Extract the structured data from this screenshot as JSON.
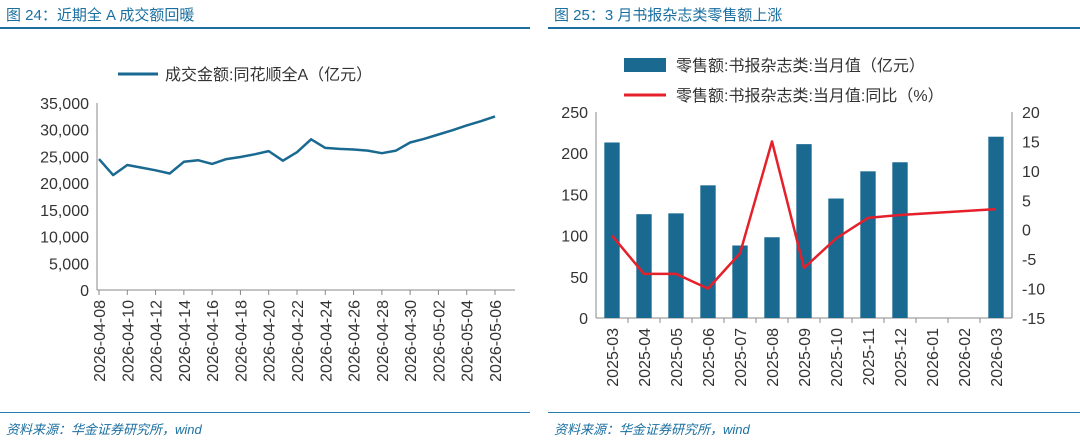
{
  "charts": [
    {
      "title": "图 24：近期全 A 成交额回暖",
      "source": "资料来源：华金证券研究所，wind"
    },
    {
      "title": "图 25：3 月书报杂志类零售额上涨",
      "source": "资料来源：华金证券研究所，wind"
    }
  ],
  "colors": {
    "accent": "#1a6fa0",
    "series_blue": "#1a6991",
    "series_red": "#e5202a"
  },
  "chart_data": [
    {
      "type": "line",
      "title": "",
      "legend_position": "top",
      "x": [
        "2026-04-08",
        "2026-04-09",
        "2026-04-10",
        "2026-04-11",
        "2026-04-12",
        "2026-04-13",
        "2026-04-14",
        "2026-04-15",
        "2026-04-16",
        "2026-04-17",
        "2026-04-18",
        "2026-04-19",
        "2026-04-20",
        "2026-04-21",
        "2026-04-22",
        "2026-04-23",
        "2026-04-24",
        "2026-04-25",
        "2026-04-26",
        "2026-04-27",
        "2026-04-28",
        "2026-04-29",
        "2026-04-30",
        "2026-05-01",
        "2026-05-02",
        "2026-05-03",
        "2026-05-04",
        "2026-05-05",
        "2026-05-06"
      ],
      "x_tick_labels": [
        "2026-04-08",
        "2026-04-10",
        "2026-04-12",
        "2026-04-14",
        "2026-04-16",
        "2026-04-18",
        "2026-04-20",
        "2026-04-22",
        "2026-04-24",
        "2026-04-26",
        "2026-04-28",
        "2026-04-30",
        "2026-05-02",
        "2026-05-04",
        "2026-05-06"
      ],
      "series": [
        {
          "name": "成交金额:同花顺全A（亿元）",
          "values": [
            24500,
            21500,
            23400,
            22900,
            22400,
            21800,
            24000,
            24300,
            23600,
            24500,
            24900,
            25400,
            26000,
            24200,
            25800,
            28200,
            26600,
            26400,
            26300,
            26100,
            25600,
            26100,
            27600,
            28300,
            29100,
            29900,
            30800,
            31600,
            32500
          ]
        }
      ],
      "y_ticks": [
        "0",
        "5,000",
        "10,000",
        "15,000",
        "20,000",
        "25,000",
        "30,000",
        "35,000"
      ],
      "ylim": [
        0,
        35000
      ],
      "grid": false
    },
    {
      "type": "bar",
      "title": "",
      "legend_position": "top",
      "categories": [
        "2025-03",
        "2025-04",
        "2025-05",
        "2025-06",
        "2025-07",
        "2025-08",
        "2025-09",
        "2025-10",
        "2025-11",
        "2025-12",
        "2026-01",
        "2026-02",
        "2026-03"
      ],
      "series": [
        {
          "name": "零售额:书报杂志类:当月值（亿元）",
          "type": "bar",
          "axis": "left",
          "values": [
            213,
            126,
            127,
            161,
            88,
            98,
            211,
            145,
            178,
            189,
            null,
            null,
            220
          ]
        },
        {
          "name": "零售额:书报杂志类:当月值:同比（%）",
          "type": "line",
          "axis": "right",
          "values": [
            -1,
            -7.5,
            -7.5,
            -10,
            -4,
            15,
            -6.5,
            -1.5,
            2,
            2.5,
            null,
            null,
            3.5
          ]
        }
      ],
      "y_ticks_left": [
        "0",
        "50",
        "100",
        "150",
        "200",
        "250"
      ],
      "ylim_left": [
        0,
        250
      ],
      "y_ticks_right": [
        "-15",
        "-10",
        "-5",
        "0",
        "5",
        "10",
        "15",
        "20"
      ],
      "ylim_right": [
        -15,
        20
      ],
      "grid": false
    }
  ]
}
